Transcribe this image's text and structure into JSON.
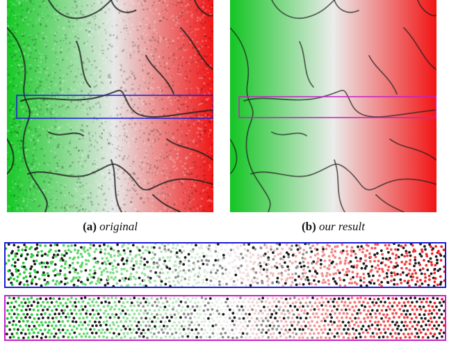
{
  "figure": {
    "panel_a": {
      "label": "(a)",
      "caption": "original"
    },
    "panel_b": {
      "label": "(b)",
      "caption": "our result"
    }
  },
  "colors": {
    "green": "#15c925",
    "white": "#f2f2f2",
    "red": "#f01515",
    "dark": "#1a1a1a",
    "box_blue": "#1b1bd6",
    "box_magenta": "#c51fc7"
  }
}
